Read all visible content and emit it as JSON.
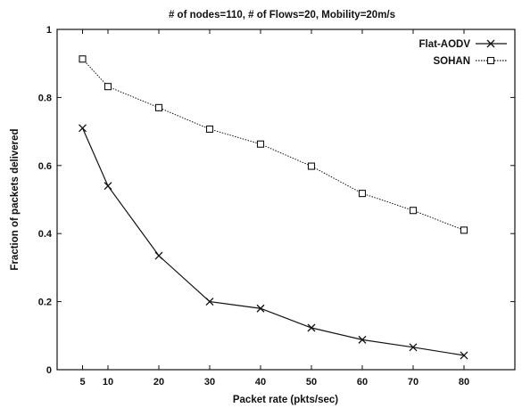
{
  "chart_data": {
    "type": "line",
    "title": "# of nodes=110, # of Flows=20, Mobility=20m/s",
    "xlabel": "Packet rate (pkts/sec)",
    "ylabel": "Fraction of packets delivered",
    "x": [
      5,
      10,
      20,
      30,
      40,
      50,
      60,
      70,
      80
    ],
    "xticks": [
      5,
      10,
      20,
      30,
      40,
      50,
      60,
      70,
      80
    ],
    "xlim": [
      0,
      90
    ],
    "yticks": [
      "0",
      "0.2",
      "0.4",
      "0.6",
      "0.8",
      "1"
    ],
    "ylim": [
      0,
      1
    ],
    "legend_position": "top-right",
    "series": [
      {
        "name": "Flat-AODV",
        "marker": "x",
        "color": "#111111",
        "line_style": "solid",
        "values": [
          0.71,
          0.54,
          0.335,
          0.2,
          0.18,
          0.123,
          0.088,
          0.066,
          0.042
        ]
      },
      {
        "name": "SOHAN",
        "marker": "square",
        "color": "#111111",
        "line_style": "dotted",
        "values": [
          0.913,
          0.832,
          0.77,
          0.707,
          0.663,
          0.598,
          0.518,
          0.468,
          0.41
        ]
      }
    ]
  }
}
